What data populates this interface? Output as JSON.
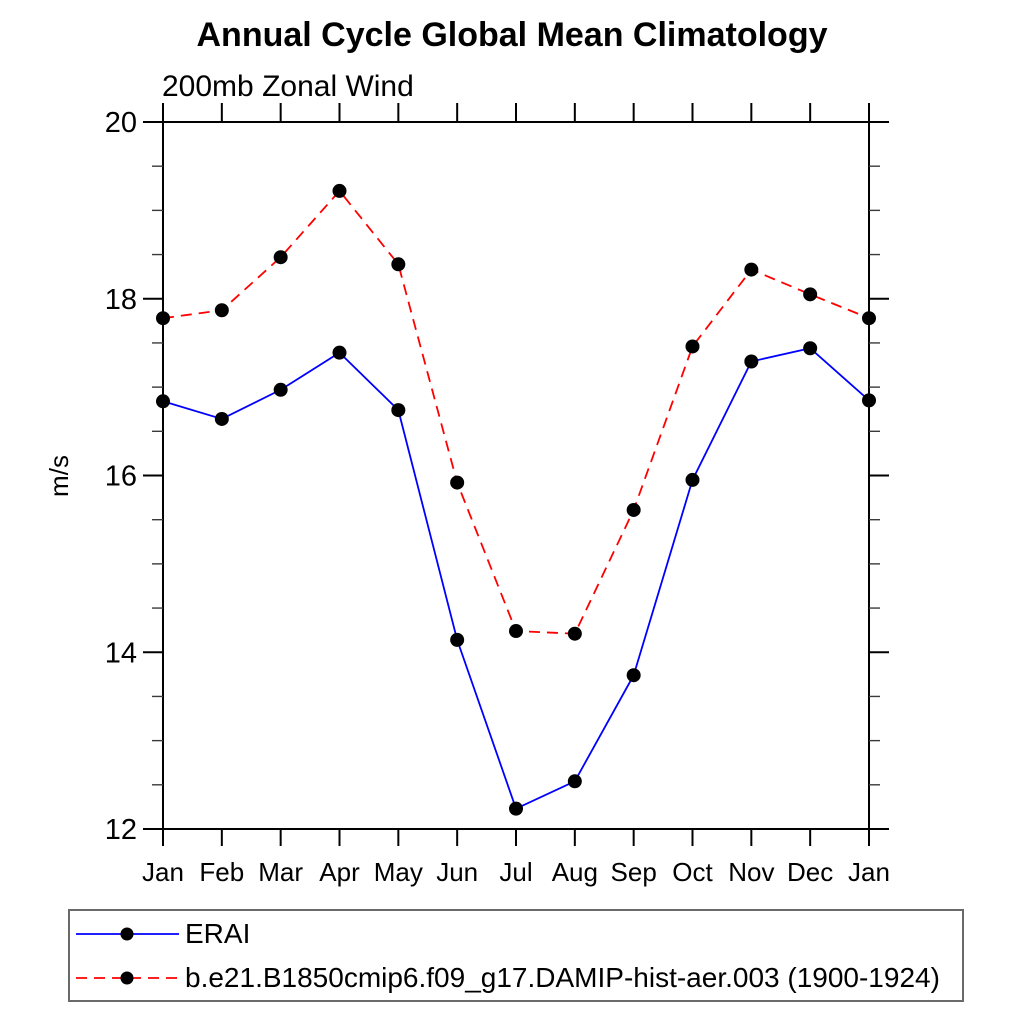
{
  "chart_data": {
    "type": "line",
    "title": "Annual Cycle Global Mean Climatology",
    "subtitle": "200mb Zonal Wind",
    "ylabel": "m/s",
    "xlabel": "",
    "categories": [
      "Jan",
      "Feb",
      "Mar",
      "Apr",
      "May",
      "Jun",
      "Jul",
      "Aug",
      "Sep",
      "Oct",
      "Nov",
      "Dec",
      "Jan"
    ],
    "ylim": [
      12,
      20
    ],
    "ytick_major": [
      20,
      18,
      16,
      14,
      12
    ],
    "ytick_minor_step": 0.5,
    "grid": false,
    "legend_position": "bottom-left",
    "series": [
      {
        "id": "erai",
        "name": "ERAI",
        "color": "#0000ff",
        "line_style": "solid",
        "marker": "filled-circle",
        "marker_color": "#000000",
        "values": [
          16.84,
          16.64,
          16.97,
          17.39,
          16.74,
          14.14,
          12.23,
          12.54,
          13.74,
          15.95,
          17.29,
          17.44,
          16.85
        ]
      },
      {
        "id": "model",
        "name": "b.e21.B1850cmip6.f09_g17.DAMIP-hist-aer.003 (1900-1924)",
        "color": "#ff0000",
        "line_style": "dashed",
        "marker": "filled-circle",
        "marker_color": "#000000",
        "values": [
          17.78,
          17.87,
          18.47,
          19.22,
          18.39,
          15.92,
          14.24,
          14.21,
          15.61,
          17.46,
          18.33,
          18.05,
          17.78
        ]
      }
    ]
  },
  "colors": {
    "axis": "#000000",
    "minor_tick": "#3a3a3a",
    "marker": "#000000",
    "legend_border": "#6a6a6a",
    "background": "#ffffff"
  }
}
